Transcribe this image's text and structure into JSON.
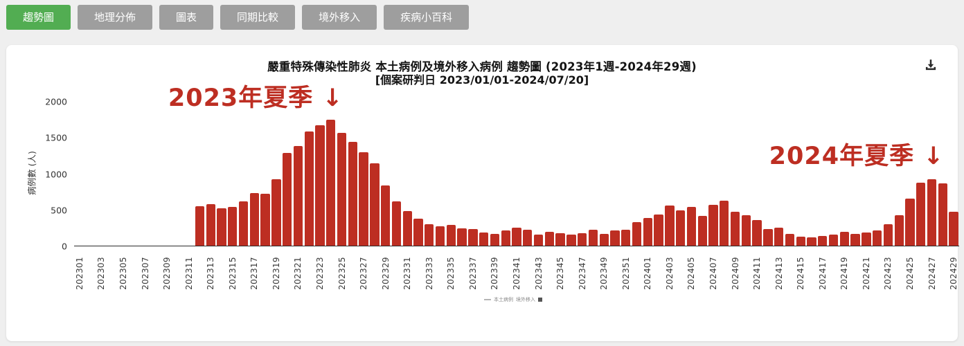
{
  "tabs": [
    {
      "label": "趨勢圖",
      "active": true
    },
    {
      "label": "地理分佈",
      "active": false
    },
    {
      "label": "圖表",
      "active": false
    },
    {
      "label": "同期比較",
      "active": false
    },
    {
      "label": "境外移入",
      "active": false
    },
    {
      "label": "疾病小百科",
      "active": false
    }
  ],
  "toolbar": {
    "download_icon": "download-icon"
  },
  "colors": {
    "tab_active": "#52ad52",
    "tab_inactive": "#9e9e9e",
    "bar": "#bd2e22",
    "annotation": "#bd2e22"
  },
  "chart_data": {
    "type": "bar",
    "title": "嚴重特殊傳染性肺炎 本土病例及境外移入病例 趨勢圖 (2023年1週-2024年29週)",
    "subtitle": "[個案研判日 2023/01/01-2024/07/20]",
    "ylabel": "病例數 (人)",
    "ylim": [
      0,
      2000
    ],
    "yticks": [
      0,
      500,
      1000,
      1500,
      2000
    ],
    "grid": false,
    "tick_every": 2,
    "bar_color": "#bd2e22",
    "legend_items": [
      "本土病例",
      "境外移入"
    ],
    "categories": [
      "202301",
      "202302",
      "202303",
      "202304",
      "202305",
      "202306",
      "202307",
      "202308",
      "202309",
      "202310",
      "202311",
      "202312",
      "202313",
      "202314",
      "202315",
      "202316",
      "202317",
      "202318",
      "202319",
      "202320",
      "202321",
      "202322",
      "202323",
      "202324",
      "202325",
      "202326",
      "202327",
      "202328",
      "202329",
      "202330",
      "202331",
      "202332",
      "202333",
      "202334",
      "202335",
      "202336",
      "202337",
      "202338",
      "202339",
      "202340",
      "202341",
      "202342",
      "202343",
      "202344",
      "202345",
      "202346",
      "202347",
      "202348",
      "202349",
      "202350",
      "202351",
      "202352",
      "202401",
      "202402",
      "202403",
      "202404",
      "202405",
      "202406",
      "202407",
      "202408",
      "202409",
      "202410",
      "202411",
      "202412",
      "202413",
      "202414",
      "202415",
      "202416",
      "202417",
      "202418",
      "202419",
      "202420",
      "202421",
      "202422",
      "202423",
      "202424",
      "202425",
      "202426",
      "202427",
      "202428",
      "202429"
    ],
    "values": [
      0,
      0,
      0,
      0,
      0,
      0,
      0,
      0,
      0,
      0,
      0,
      550,
      575,
      520,
      535,
      615,
      730,
      715,
      920,
      1280,
      1375,
      1580,
      1670,
      1745,
      1565,
      1440,
      1295,
      1140,
      835,
      615,
      480,
      375,
      300,
      265,
      285,
      235,
      230,
      180,
      165,
      210,
      245,
      220,
      155,
      190,
      175,
      150,
      175,
      220,
      165,
      210,
      220,
      330,
      380,
      430,
      555,
      490,
      535,
      415,
      565,
      620,
      470,
      420,
      355,
      230,
      245,
      160,
      125,
      120,
      130,
      150,
      195,
      165,
      185,
      215,
      300,
      425,
      650,
      875,
      920,
      865,
      470
    ],
    "annotations": [
      {
        "text": "2023年夏季 ↓",
        "week": "202324"
      },
      {
        "text": "2024年夏季 ↓",
        "week": "202427"
      }
    ]
  }
}
